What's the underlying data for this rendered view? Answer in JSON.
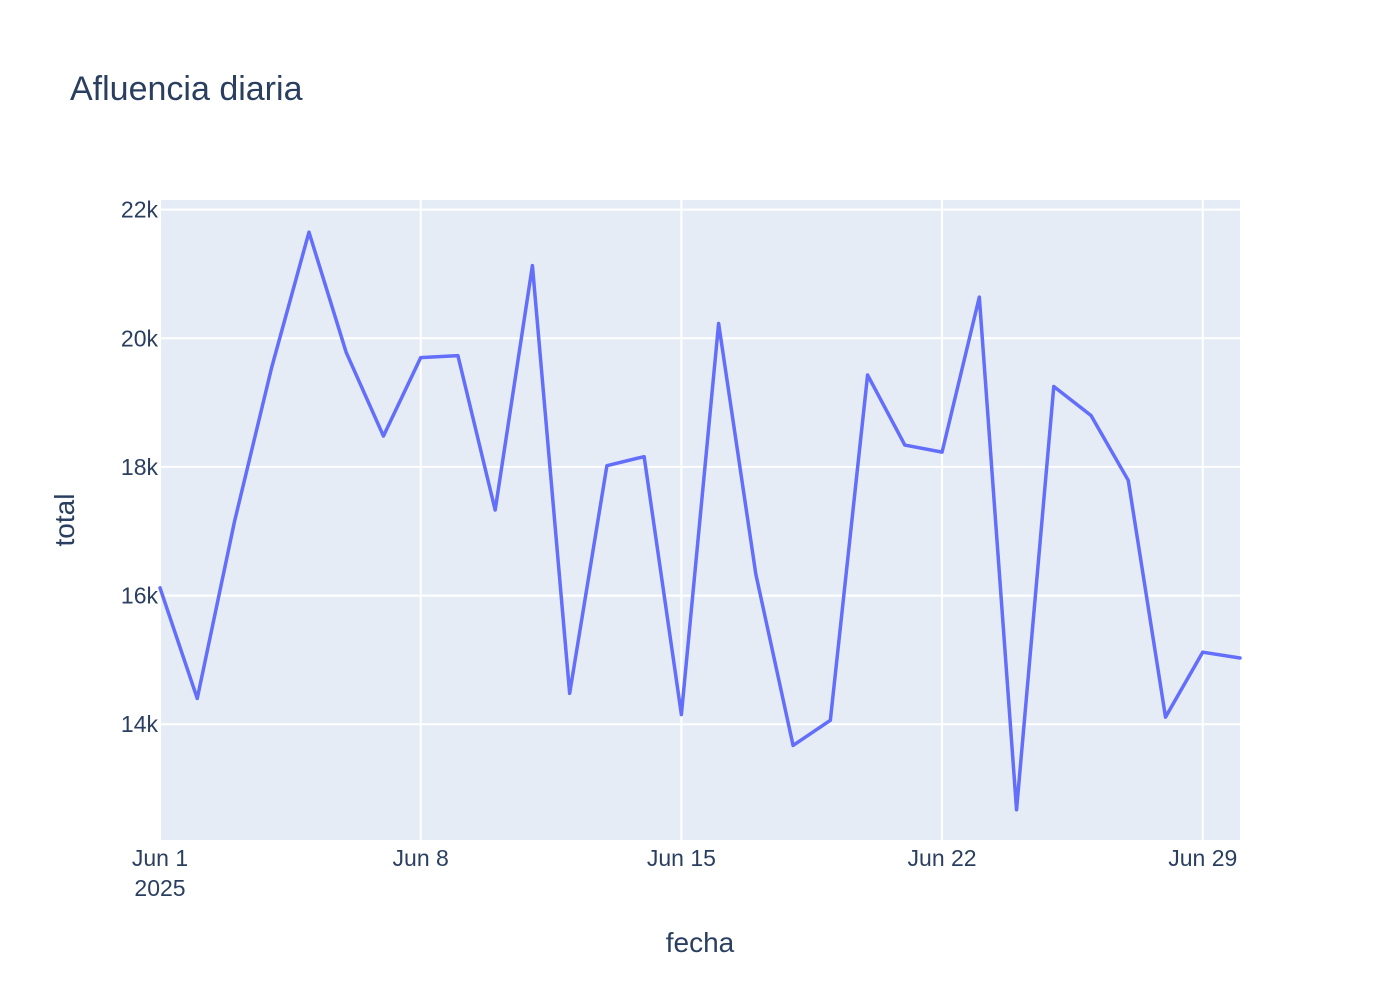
{
  "chart_data": {
    "type": "line",
    "title": "Afluencia diaria",
    "xlabel": "fecha",
    "ylabel": "total",
    "x_start": "2025-06-01",
    "x": [
      "2025-06-01",
      "2025-06-02",
      "2025-06-03",
      "2025-06-04",
      "2025-06-05",
      "2025-06-06",
      "2025-06-07",
      "2025-06-08",
      "2025-06-09",
      "2025-06-10",
      "2025-06-11",
      "2025-06-12",
      "2025-06-13",
      "2025-06-14",
      "2025-06-15",
      "2025-06-16",
      "2025-06-17",
      "2025-06-18",
      "2025-06-19",
      "2025-06-20",
      "2025-06-21",
      "2025-06-22",
      "2025-06-23",
      "2025-06-24",
      "2025-06-25",
      "2025-06-26",
      "2025-06-27",
      "2025-06-28",
      "2025-06-29",
      "2025-06-30"
    ],
    "series": [
      {
        "color": "#636efa",
        "values": [
          16120,
          14400,
          17150,
          19550,
          21650,
          19780,
          18480,
          19700,
          19730,
          17330,
          21130,
          14480,
          18020,
          18160,
          14150,
          20230,
          16330,
          13670,
          14060,
          19430,
          18340,
          18230,
          20640,
          12670,
          19250,
          18800,
          17790,
          14110,
          15120,
          15030
        ]
      }
    ],
    "xlim": [
      "2025-06-01",
      "2025-06-30"
    ],
    "ylim": [
      12200,
      22150
    ],
    "x_ticks": [
      {
        "date": "2025-06-01",
        "label": "Jun 1",
        "sub": "2025"
      },
      {
        "date": "2025-06-08",
        "label": "Jun 8",
        "sub": ""
      },
      {
        "date": "2025-06-15",
        "label": "Jun 15",
        "sub": ""
      },
      {
        "date": "2025-06-22",
        "label": "Jun 22",
        "sub": ""
      },
      {
        "date": "2025-06-29",
        "label": "Jun 29",
        "sub": ""
      }
    ],
    "y_ticks": [
      {
        "value": 14000,
        "label": "14k"
      },
      {
        "value": 16000,
        "label": "16k"
      },
      {
        "value": 18000,
        "label": "18k"
      },
      {
        "value": 20000,
        "label": "20k"
      },
      {
        "value": 22000,
        "label": "22k"
      }
    ],
    "grid": true,
    "plot_bgcolor": "#e5ecf6",
    "grid_color": "#ffffff",
    "text_color": "#2a3f5f"
  }
}
